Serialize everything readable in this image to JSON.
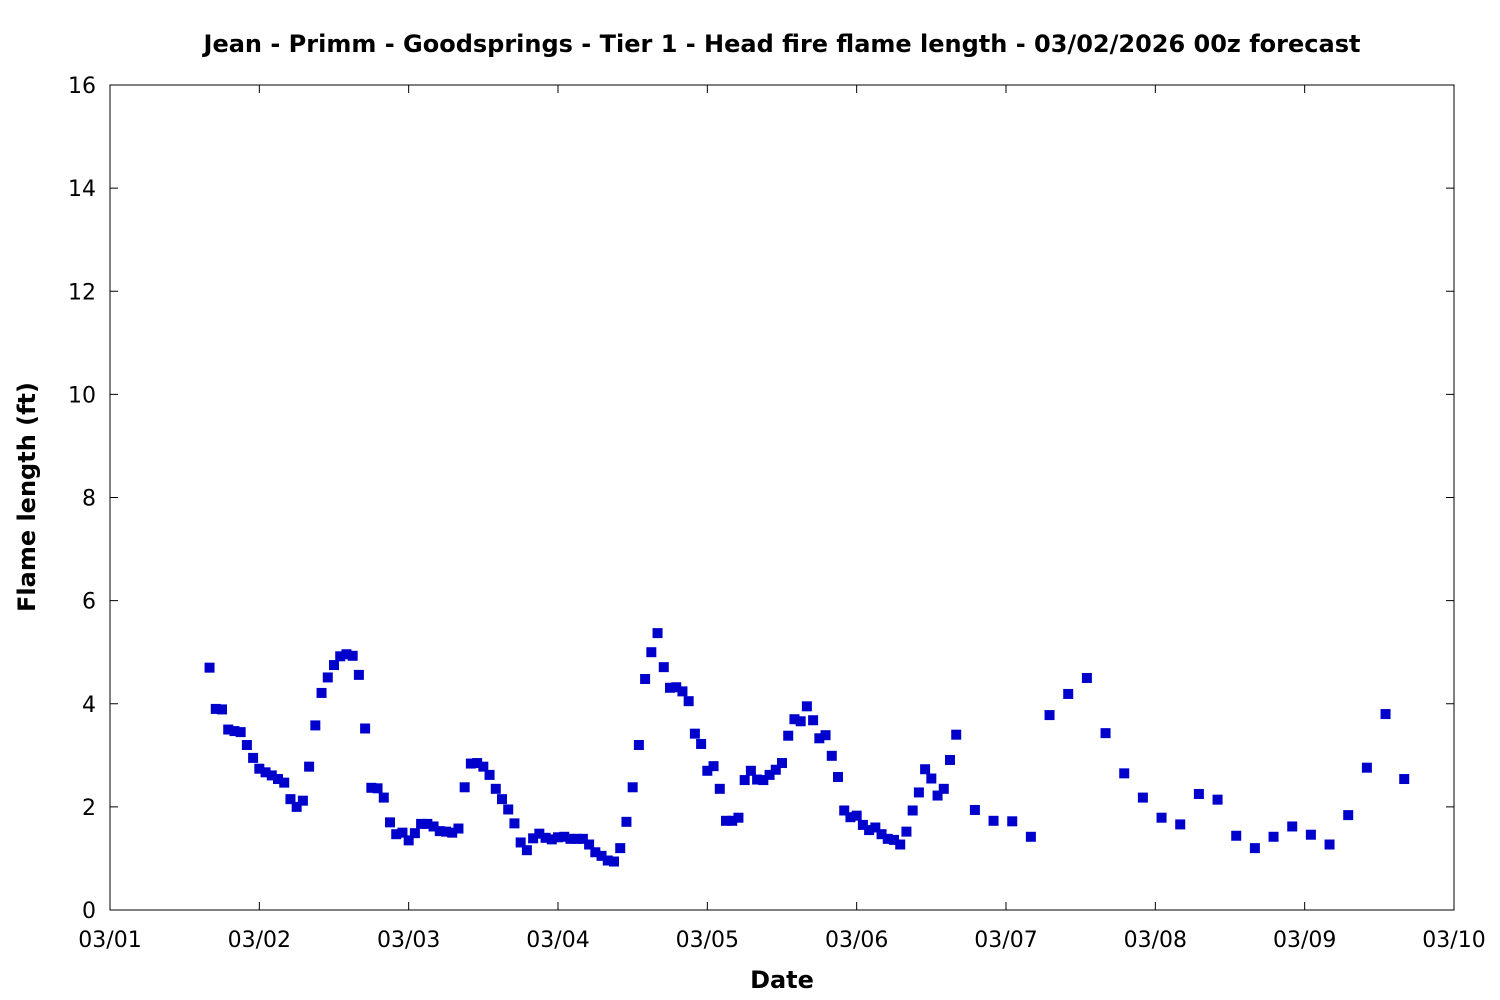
{
  "chart_data": {
    "type": "scatter",
    "title": "Jean - Primm - Goodsprings - Tier 1 - Head fire flame length - 03/02/2026 00z forecast",
    "xlabel": "Date",
    "ylabel": "Flame length (ft)",
    "xlim": [
      "2026-03-01",
      "2026-03-10"
    ],
    "ylim": [
      0,
      16
    ],
    "x_ticks": [
      "03/01",
      "03/02",
      "03/03",
      "03/04",
      "03/05",
      "03/06",
      "03/07",
      "03/08",
      "03/09",
      "03/10"
    ],
    "y_ticks": [
      "0",
      "2",
      "4",
      "6",
      "8",
      "10",
      "12",
      "14",
      "16"
    ],
    "grid": false,
    "legend": "none",
    "marker": "square",
    "color": "#0000cc",
    "series": [
      {
        "x": [
          "2026-03-01 16:00",
          "2026-03-01 17:00",
          "2026-03-01 18:00",
          "2026-03-01 19:00",
          "2026-03-01 20:00",
          "2026-03-01 21:00",
          "2026-03-01 22:00",
          "2026-03-01 23:00",
          "2026-03-02 00:00",
          "2026-03-02 01:00",
          "2026-03-02 02:00",
          "2026-03-02 03:00",
          "2026-03-02 04:00",
          "2026-03-02 05:00",
          "2026-03-02 06:00",
          "2026-03-02 07:00",
          "2026-03-02 08:00",
          "2026-03-02 09:00",
          "2026-03-02 10:00",
          "2026-03-02 11:00",
          "2026-03-02 12:00",
          "2026-03-02 13:00",
          "2026-03-02 14:00",
          "2026-03-02 15:00",
          "2026-03-02 16:00",
          "2026-03-02 17:00",
          "2026-03-02 18:00",
          "2026-03-02 19:00",
          "2026-03-02 20:00",
          "2026-03-02 21:00",
          "2026-03-02 22:00",
          "2026-03-02 23:00",
          "2026-03-03 00:00",
          "2026-03-03 01:00",
          "2026-03-03 02:00",
          "2026-03-03 03:00",
          "2026-03-03 04:00",
          "2026-03-03 05:00",
          "2026-03-03 06:00",
          "2026-03-03 07:00",
          "2026-03-03 08:00",
          "2026-03-03 09:00",
          "2026-03-03 10:00",
          "2026-03-03 11:00",
          "2026-03-03 12:00",
          "2026-03-03 13:00",
          "2026-03-03 14:00",
          "2026-03-03 15:00",
          "2026-03-03 16:00",
          "2026-03-03 17:00",
          "2026-03-03 18:00",
          "2026-03-03 19:00",
          "2026-03-03 20:00",
          "2026-03-03 21:00",
          "2026-03-03 22:00",
          "2026-03-03 23:00",
          "2026-03-04 00:00",
          "2026-03-04 01:00",
          "2026-03-04 02:00",
          "2026-03-04 03:00",
          "2026-03-04 04:00",
          "2026-03-04 05:00",
          "2026-03-04 06:00",
          "2026-03-04 07:00",
          "2026-03-04 08:00",
          "2026-03-04 09:00",
          "2026-03-04 10:00",
          "2026-03-04 11:00",
          "2026-03-04 12:00",
          "2026-03-04 13:00",
          "2026-03-04 14:00",
          "2026-03-04 15:00",
          "2026-03-04 16:00",
          "2026-03-04 17:00",
          "2026-03-04 18:00",
          "2026-03-04 19:00",
          "2026-03-04 20:00",
          "2026-03-04 21:00",
          "2026-03-04 22:00",
          "2026-03-04 23:00",
          "2026-03-05 00:00",
          "2026-03-05 01:00",
          "2026-03-05 02:00",
          "2026-03-05 03:00",
          "2026-03-05 04:00",
          "2026-03-05 05:00",
          "2026-03-05 06:00",
          "2026-03-05 07:00",
          "2026-03-05 08:00",
          "2026-03-05 09:00",
          "2026-03-05 10:00",
          "2026-03-05 11:00",
          "2026-03-05 12:00",
          "2026-03-05 13:00",
          "2026-03-05 14:00",
          "2026-03-05 15:00",
          "2026-03-05 16:00",
          "2026-03-05 17:00",
          "2026-03-05 18:00",
          "2026-03-05 19:00",
          "2026-03-05 20:00",
          "2026-03-05 21:00",
          "2026-03-05 22:00",
          "2026-03-05 23:00",
          "2026-03-06 00:00",
          "2026-03-06 01:00",
          "2026-03-06 02:00",
          "2026-03-06 03:00",
          "2026-03-06 04:00",
          "2026-03-06 05:00",
          "2026-03-06 06:00",
          "2026-03-06 07:00",
          "2026-03-06 08:00",
          "2026-03-06 09:00",
          "2026-03-06 10:00",
          "2026-03-06 11:00",
          "2026-03-06 12:00",
          "2026-03-06 13:00",
          "2026-03-06 14:00",
          "2026-03-06 15:00",
          "2026-03-06 16:00",
          "2026-03-06 19:00",
          "2026-03-06 22:00",
          "2026-03-07 01:00",
          "2026-03-07 04:00",
          "2026-03-07 07:00",
          "2026-03-07 10:00",
          "2026-03-07 13:00",
          "2026-03-07 16:00",
          "2026-03-07 19:00",
          "2026-03-07 22:00",
          "2026-03-08 01:00",
          "2026-03-08 04:00",
          "2026-03-08 07:00",
          "2026-03-08 10:00",
          "2026-03-08 13:00",
          "2026-03-08 16:00",
          "2026-03-08 19:00",
          "2026-03-08 22:00",
          "2026-03-09 01:00",
          "2026-03-09 04:00",
          "2026-03-09 07:00",
          "2026-03-09 10:00",
          "2026-03-09 13:00",
          "2026-03-09 16:00"
        ],
        "y": [
          4.7,
          3.9,
          3.89,
          3.5,
          3.47,
          3.45,
          3.2,
          2.95,
          2.74,
          2.67,
          2.61,
          2.54,
          2.47,
          2.15,
          2.0,
          2.12,
          2.78,
          3.58,
          4.21,
          4.51,
          4.75,
          4.92,
          4.96,
          4.93,
          4.56,
          3.52,
          2.37,
          2.36,
          2.18,
          1.7,
          1.47,
          1.5,
          1.35,
          1.49,
          1.67,
          1.67,
          1.62,
          1.53,
          1.52,
          1.5,
          1.58,
          2.38,
          2.84,
          2.85,
          2.78,
          2.62,
          2.35,
          2.15,
          1.95,
          1.68,
          1.31,
          1.16,
          1.39,
          1.48,
          1.4,
          1.37,
          1.41,
          1.42,
          1.38,
          1.38,
          1.38,
          1.27,
          1.12,
          1.05,
          0.96,
          0.94,
          1.2,
          1.71,
          2.38,
          3.2,
          4.48,
          5.0,
          5.37,
          4.71,
          4.31,
          4.32,
          4.24,
          4.05,
          3.42,
          3.22,
          2.7,
          2.79,
          2.35,
          1.73,
          1.73,
          1.79,
          2.52,
          2.7,
          2.53,
          2.52,
          2.62,
          2.72,
          2.85,
          3.38,
          3.7,
          3.66,
          3.95,
          3.68,
          3.33,
          3.39,
          2.99,
          2.58,
          1.93,
          1.8,
          1.83,
          1.65,
          1.55,
          1.6,
          1.47,
          1.38,
          1.36,
          1.27,
          1.52,
          1.93,
          2.28,
          2.73,
          2.55,
          2.22,
          2.35,
          2.91,
          3.4,
          1.94,
          1.73,
          1.72,
          1.42,
          3.78,
          4.19,
          4.5,
          3.43,
          2.65,
          2.18,
          1.79,
          1.66,
          2.25,
          2.14,
          1.44,
          1.2,
          1.42,
          1.62,
          1.46,
          1.27,
          1.84,
          2.76,
          3.8,
          2.54
        ]
      }
    ]
  }
}
